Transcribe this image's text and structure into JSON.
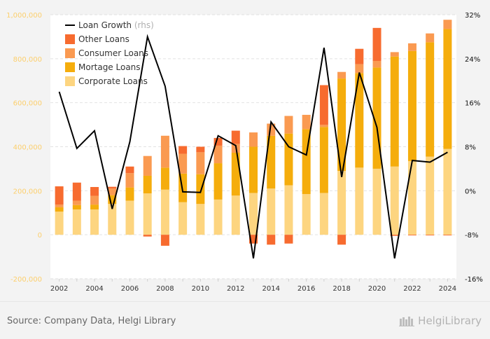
{
  "chart_data": {
    "type": "bar",
    "stacked": true,
    "categories": [
      "2002",
      "2003",
      "2004",
      "2005",
      "2006",
      "2007",
      "2008",
      "2009",
      "2010",
      "2011",
      "2012",
      "2013",
      "2014",
      "2015",
      "2016",
      "2017",
      "2018",
      "2019",
      "2020",
      "2021",
      "2022",
      "2023",
      "2024"
    ],
    "series": [
      {
        "name": "Corporate Loans",
        "color": "#fdd580",
        "values": [
          105000,
          115000,
          115000,
          140000,
          155000,
          188000,
          205000,
          148000,
          140000,
          160000,
          178000,
          190000,
          210000,
          225000,
          185000,
          190000,
          290000,
          305000,
          300000,
          310000,
          335000,
          355000,
          390000
        ]
      },
      {
        "name": "Mortage Loans",
        "color": "#f5ad0c",
        "values": [
          20000,
          20000,
          22000,
          40000,
          60000,
          80000,
          100000,
          130000,
          135000,
          165000,
          195000,
          210000,
          240000,
          235000,
          295000,
          300000,
          420000,
          430000,
          460000,
          500000,
          500000,
          520000,
          545000
        ]
      },
      {
        "name": "Consumer Loans",
        "color": "#fa9a51",
        "values": [
          12000,
          20000,
          40000,
          30000,
          65000,
          90000,
          145000,
          90000,
          100000,
          80000,
          40000,
          65000,
          55000,
          80000,
          65000,
          10000,
          30000,
          40000,
          30000,
          20000,
          35000,
          40000,
          42000
        ]
      },
      {
        "name": "Other Loans",
        "color": "#f76b2f",
        "values": [
          83000,
          82000,
          40000,
          8000,
          30000,
          -8000,
          -50000,
          35000,
          25000,
          35000,
          60000,
          -40000,
          -45000,
          -40000,
          0,
          180000,
          -45000,
          70000,
          150000,
          -5000,
          -3000,
          -3000,
          -3000
        ]
      }
    ],
    "line": {
      "name": "Loan Growth (rhs)",
      "color": "#000000",
      "axis": "right",
      "values": [
        0.18,
        0.077,
        0.109,
        -0.033,
        0.089,
        0.28,
        0.19,
        -0.002,
        -0.003,
        0.1,
        0.082,
        -0.123,
        0.125,
        0.08,
        0.065,
        0.26,
        0.025,
        0.215,
        0.115,
        -0.123,
        0.055,
        0.052,
        0.07
      ]
    },
    "y_left": {
      "min": -200000,
      "max": 1000000,
      "ticks": [
        -200000,
        0,
        200000,
        400000,
        600000,
        800000,
        1000000
      ],
      "tick_labels": [
        "-200,000",
        "0",
        "200,000",
        "400,000",
        "600,000",
        "800,000",
        "1,000,000"
      ]
    },
    "y_right": {
      "min": -0.16,
      "max": 0.32,
      "ticks": [
        -0.16,
        -0.08,
        0,
        0.08,
        0.16,
        0.24,
        0.32
      ],
      "tick_labels": [
        "-16%",
        "-8%",
        "0%",
        "8%",
        "16%",
        "24%",
        "32%"
      ]
    },
    "x_tick_labels": [
      "2002",
      "2004",
      "2006",
      "2008",
      "2010",
      "2012",
      "2014",
      "2016",
      "2018",
      "2020",
      "2022",
      "2024"
    ],
    "legend": [
      {
        "label": "Loan Growth",
        "suffix": "(rhs)",
        "kind": "line",
        "color": "#000000"
      },
      {
        "label": "Other Loans",
        "kind": "box",
        "color": "#f76b2f"
      },
      {
        "label": "Consumer Loans",
        "kind": "box",
        "color": "#fa9a51"
      },
      {
        "label": "Mortage Loans",
        "kind": "box",
        "color": "#f5ad0c"
      },
      {
        "label": "Corporate Loans",
        "kind": "box",
        "color": "#fdd580"
      }
    ],
    "legend_position": "top-left",
    "grid": "horizontal dashed"
  },
  "footer": {
    "source": "Source: Company Data, Helgi Library",
    "brand": "HelgiLibrary"
  }
}
